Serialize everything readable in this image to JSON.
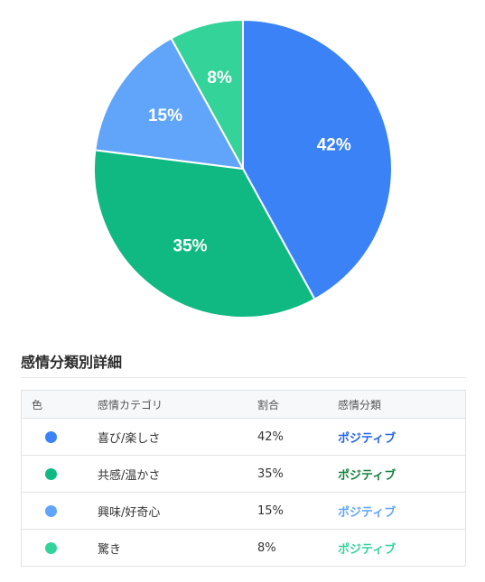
{
  "chart_data": {
    "type": "pie",
    "slices": [
      {
        "label": "喜び/楽しさ",
        "value": 42,
        "display": "42%",
        "color": "#3b82f6"
      },
      {
        "label": "共感/温かさ",
        "value": 35,
        "display": "35%",
        "color": "#10b981"
      },
      {
        "label": "興味/好奇心",
        "value": 15,
        "display": "15%",
        "color": "#60a5fa"
      },
      {
        "label": "驚き",
        "value": 8,
        "display": "8%",
        "color": "#34d399"
      }
    ]
  },
  "section": {
    "title": "感情分類別詳細"
  },
  "table": {
    "headers": {
      "color": "色",
      "category": "感情カテゴリ",
      "ratio": "割合",
      "sentiment": "感情分類"
    },
    "rows": [
      {
        "color": "#3b82f6",
        "category": "喜び/楽しさ",
        "ratio": "42%",
        "sentiment": "ポジティブ",
        "sentiment_color": "#2563eb"
      },
      {
        "color": "#10b981",
        "category": "共感/温かさ",
        "ratio": "35%",
        "sentiment": "ポジティブ",
        "sentiment_color": "#15803d"
      },
      {
        "color": "#60a5fa",
        "category": "興味/好奇心",
        "ratio": "15%",
        "sentiment": "ポジティブ",
        "sentiment_color": "#60a5fa"
      },
      {
        "color": "#34d399",
        "category": "驚き",
        "ratio": "8%",
        "sentiment": "ポジティブ",
        "sentiment_color": "#34d399"
      }
    ]
  }
}
